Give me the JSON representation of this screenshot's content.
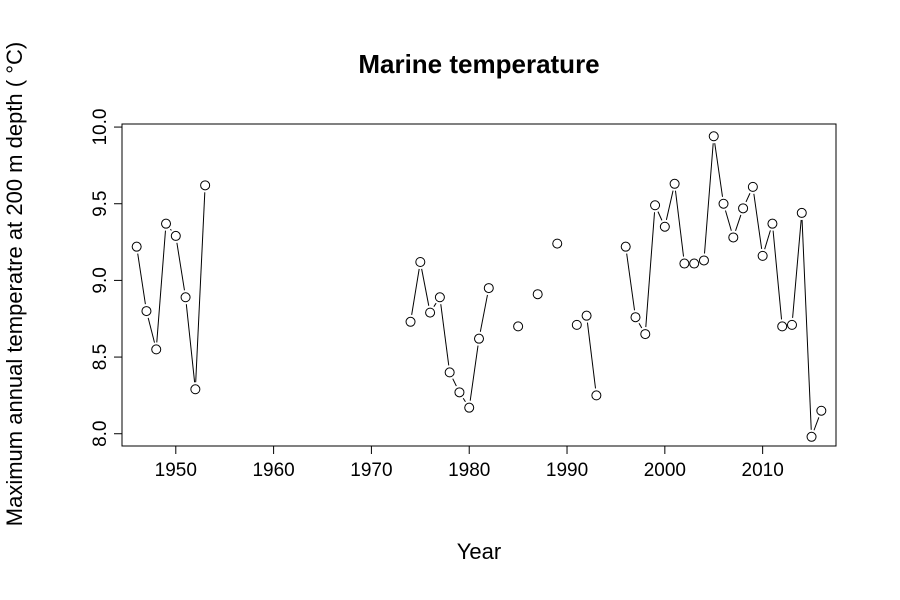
{
  "chart_data": {
    "type": "line",
    "title": "Marine temperature",
    "xlabel": "Year",
    "ylabel": "Maximum annual temperatre at 200 m depth ( °C)",
    "xlim": [
      1944.5,
      2017.5
    ],
    "ylim": [
      7.92,
      10.02
    ],
    "x_ticks": [
      "1950",
      "1960",
      "1970",
      "1980",
      "1990",
      "2000",
      "2010"
    ],
    "y_ticks": [
      "8.0",
      "8.5",
      "9.0",
      "9.5",
      "10.0"
    ],
    "grid": false,
    "legend": "none",
    "marker": "open-circle",
    "series": [
      {
        "x": [
          1946,
          1947,
          1948,
          1949,
          1950,
          1951,
          1952,
          1953,
          1954,
          1955,
          1956,
          1957,
          1958,
          1959,
          1960,
          1961,
          1962,
          1963,
          1964,
          1965,
          1966,
          1967,
          1968,
          1969,
          1970,
          1971,
          1972,
          1973,
          1974,
          1975,
          1976,
          1977,
          1978,
          1979,
          1980,
          1981,
          1982,
          1983,
          1984,
          1985,
          1986,
          1987,
          1988,
          1989,
          1990,
          1991,
          1992,
          1993,
          1994,
          1995,
          1996,
          1997,
          1998,
          1999,
          2000,
          2001,
          2002,
          2003,
          2004,
          2005,
          2006,
          2007,
          2008,
          2009,
          2010,
          2011,
          2012,
          2013,
          2014,
          2015,
          2016
        ],
        "y": [
          9.22,
          8.8,
          8.55,
          9.37,
          9.29,
          8.89,
          8.29,
          9.62,
          null,
          null,
          null,
          null,
          null,
          null,
          null,
          null,
          null,
          null,
          null,
          null,
          null,
          null,
          null,
          null,
          null,
          null,
          null,
          null,
          8.73,
          9.12,
          8.79,
          8.89,
          8.4,
          8.27,
          8.17,
          8.62,
          8.95,
          null,
          null,
          8.7,
          null,
          8.91,
          null,
          9.24,
          null,
          8.71,
          8.77,
          8.25,
          null,
          null,
          9.22,
          8.76,
          8.65,
          9.49,
          9.35,
          9.63,
          9.11,
          9.11,
          9.13,
          9.94,
          9.5,
          9.28,
          9.47,
          9.61,
          9.16,
          9.37,
          8.7,
          8.71,
          9.44,
          7.98,
          8.15
        ]
      }
    ]
  }
}
